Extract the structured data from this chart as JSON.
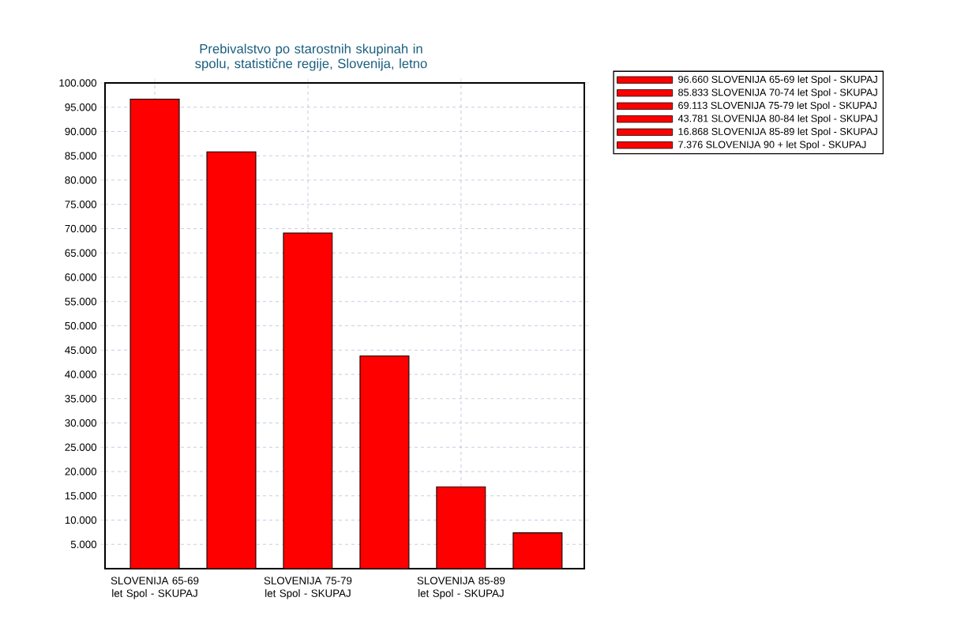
{
  "chart_data": {
    "type": "bar",
    "title": "Prebivalstvo po starostnih skupinah in spolu, statistične regije, Slovenija, letno",
    "categories": [
      "SLOVENIJA 65-69 let Spol - SKUPAJ",
      null,
      "SLOVENIJA 75-79 let Spol - SKUPAJ",
      null,
      "SLOVENIJA 85-89 let Spol - SKUPAJ",
      null
    ],
    "series": [
      {
        "name": "96.660 SLOVENIJA 65-69 let Spol - SKUPAJ",
        "color": "#ff0000",
        "values": [
          96660,
          null,
          null,
          null,
          null,
          null
        ]
      },
      {
        "name": "85.833 SLOVENIJA 70-74 let Spol - SKUPAJ",
        "color": "#ff0000",
        "values": [
          null,
          85833,
          null,
          null,
          null,
          null
        ]
      },
      {
        "name": "69.113 SLOVENIJA 75-79 let Spol - SKUPAJ",
        "color": "#ff0000",
        "values": [
          null,
          null,
          69113,
          null,
          null,
          null
        ]
      },
      {
        "name": "43.781 SLOVENIJA 80-84 let Spol - SKUPAJ",
        "color": "#ff0000",
        "values": [
          null,
          null,
          null,
          43781,
          null,
          null
        ]
      },
      {
        "name": "16.868 SLOVENIJA 85-89 let Spol - SKUPAJ",
        "color": "#ff0000",
        "values": [
          null,
          null,
          null,
          null,
          16868,
          null
        ]
      },
      {
        "name": "7.376 SLOVENIJA 90 + let Spol - SKUPAJ",
        "color": "#ff0000",
        "values": [
          null,
          null,
          null,
          null,
          null,
          7376
        ]
      }
    ],
    "ylim": [
      0,
      100000
    ],
    "yticks": [
      {
        "value": 5000,
        "label": "5.000"
      },
      {
        "value": 10000,
        "label": "10.000"
      },
      {
        "value": 15000,
        "label": "15.000"
      },
      {
        "value": 20000,
        "label": "20.000"
      },
      {
        "value": 25000,
        "label": "25.000"
      },
      {
        "value": 30000,
        "label": "30.000"
      },
      {
        "value": 35000,
        "label": "35.000"
      },
      {
        "value": 40000,
        "label": "40.000"
      },
      {
        "value": 45000,
        "label": "45.000"
      },
      {
        "value": 50000,
        "label": "50.000"
      },
      {
        "value": 55000,
        "label": "55.000"
      },
      {
        "value": 60000,
        "label": "60.000"
      },
      {
        "value": 65000,
        "label": "65.000"
      },
      {
        "value": 70000,
        "label": "70.000"
      },
      {
        "value": 75000,
        "label": "75.000"
      },
      {
        "value": 80000,
        "label": "80.000"
      },
      {
        "value": 85000,
        "label": "85.000"
      },
      {
        "value": 90000,
        "label": "90.000"
      },
      {
        "value": 95000,
        "label": "95.000"
      },
      {
        "value": 100000,
        "label": "100.000"
      }
    ],
    "grid": true,
    "legend": "top right"
  }
}
